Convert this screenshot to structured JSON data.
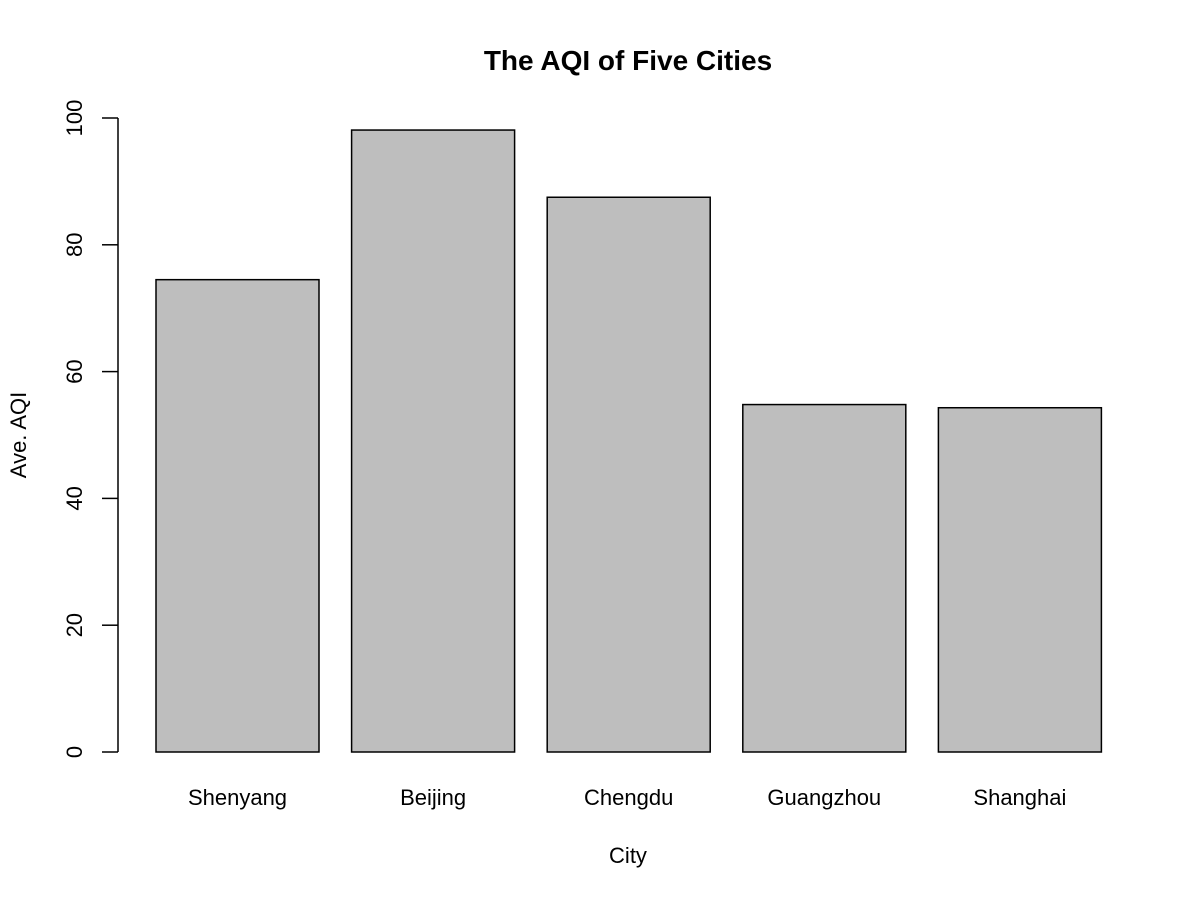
{
  "chart_data": {
    "type": "bar",
    "title": "The AQI of Five Cities",
    "xlabel": "City",
    "ylabel": "Ave. AQI",
    "categories": [
      "Shenyang",
      "Beijing",
      "Chengdu",
      "Guangzhou",
      "Shanghai"
    ],
    "values": [
      74.5,
      98.1,
      87.5,
      54.8,
      54.3
    ],
    "ylim": [
      0,
      100
    ],
    "yticks": [
      0,
      20,
      40,
      60,
      80,
      100
    ],
    "bar_color": "#bebebe",
    "grid": false,
    "legend": "none"
  }
}
